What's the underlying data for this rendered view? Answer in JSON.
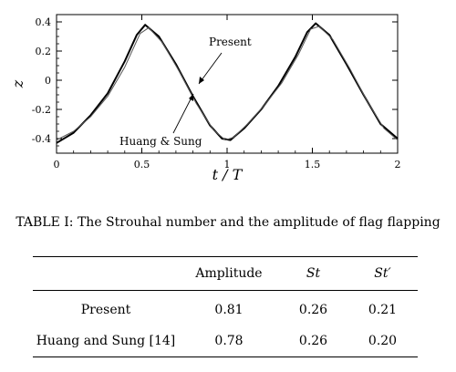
{
  "chart_data": {
    "type": "line",
    "xlabel": "t / T",
    "ylabel": "z",
    "xlim": [
      0,
      2
    ],
    "ylim": [
      -0.5,
      0.45
    ],
    "x_ticks": [
      "0",
      "0.5",
      "1",
      "1.5",
      "2"
    ],
    "y_ticks": [
      "0.4",
      "0.2",
      "0",
      "-0.2",
      "-0.4"
    ],
    "series": [
      {
        "name": "Present",
        "style": "thick black",
        "x": [
          0,
          0.1,
          0.2,
          0.3,
          0.4,
          0.47,
          0.52,
          0.6,
          0.7,
          0.8,
          0.9,
          0.97,
          1.02,
          1.1,
          1.2,
          1.3,
          1.4,
          1.47,
          1.52,
          1.6,
          1.7,
          1.8,
          1.9,
          2.0
        ],
        "y": [
          -0.43,
          -0.36,
          -0.24,
          -0.09,
          0.13,
          0.31,
          0.38,
          0.3,
          0.11,
          -0.11,
          -0.31,
          -0.4,
          -0.41,
          -0.33,
          -0.2,
          -0.04,
          0.16,
          0.33,
          0.39,
          0.31,
          0.11,
          -0.1,
          -0.3,
          -0.4
        ]
      },
      {
        "name": "Huang & Sung",
        "style": "thin gray",
        "x": [
          0,
          0.1,
          0.2,
          0.3,
          0.4,
          0.49,
          0.54,
          0.62,
          0.72,
          0.82,
          0.92,
          0.99,
          1.04,
          1.12,
          1.22,
          1.32,
          1.42,
          1.49,
          1.54,
          1.62,
          1.72,
          1.82,
          1.92,
          2.0
        ],
        "y": [
          -0.41,
          -0.35,
          -0.25,
          -0.11,
          0.09,
          0.32,
          0.36,
          0.26,
          0.06,
          -0.16,
          -0.34,
          -0.41,
          -0.39,
          -0.3,
          -0.17,
          -0.02,
          0.18,
          0.35,
          0.37,
          0.28,
          0.08,
          -0.14,
          -0.33,
          -0.41
        ]
      }
    ],
    "annotations": [
      "Present",
      "Huang & Sung"
    ]
  },
  "caption": "TABLE I: The Strouhal number and the amplitude of flag flapping",
  "table": {
    "headers": [
      "",
      "Amplitude",
      "St",
      "St′"
    ],
    "rows": [
      [
        "Present",
        "0.81",
        "0.26",
        "0.21"
      ],
      [
        "Huang and Sung [14]",
        "0.78",
        "0.26",
        "0.20"
      ]
    ]
  }
}
